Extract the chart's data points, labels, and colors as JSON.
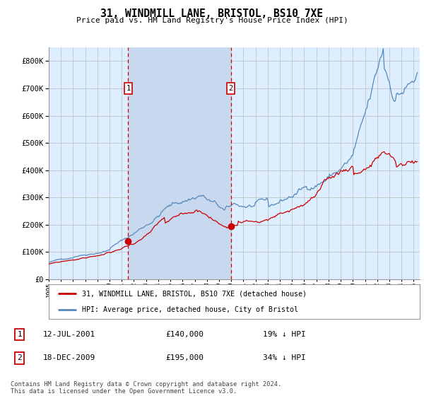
{
  "title": "31, WINDMILL LANE, BRISTOL, BS10 7XE",
  "subtitle": "Price paid vs. HM Land Registry's House Price Index (HPI)",
  "transaction1_year": 2001.53,
  "transaction1_price": 140000,
  "transaction1_date": "12-JUL-2001",
  "transaction1_pct": "19% ↓ HPI",
  "transaction2_year": 2009.96,
  "transaction2_price": 195000,
  "transaction2_date": "18-DEC-2009",
  "transaction2_pct": "34% ↓ HPI",
  "legend1": "31, WINDMILL LANE, BRISTOL, BS10 7XE (detached house)",
  "legend2": "HPI: Average price, detached house, City of Bristol",
  "footer": "Contains HM Land Registry data © Crown copyright and database right 2024.\nThis data is licensed under the Open Government Licence v3.0.",
  "red_color": "#cc0000",
  "blue_color": "#5588bb",
  "fill_color": "#ddeeff",
  "highlight_color": "#c8d8ee",
  "background_color": "#ffffff",
  "ylim": [
    0,
    850000
  ],
  "xlim_start": 1995.0,
  "xlim_end": 2025.5
}
